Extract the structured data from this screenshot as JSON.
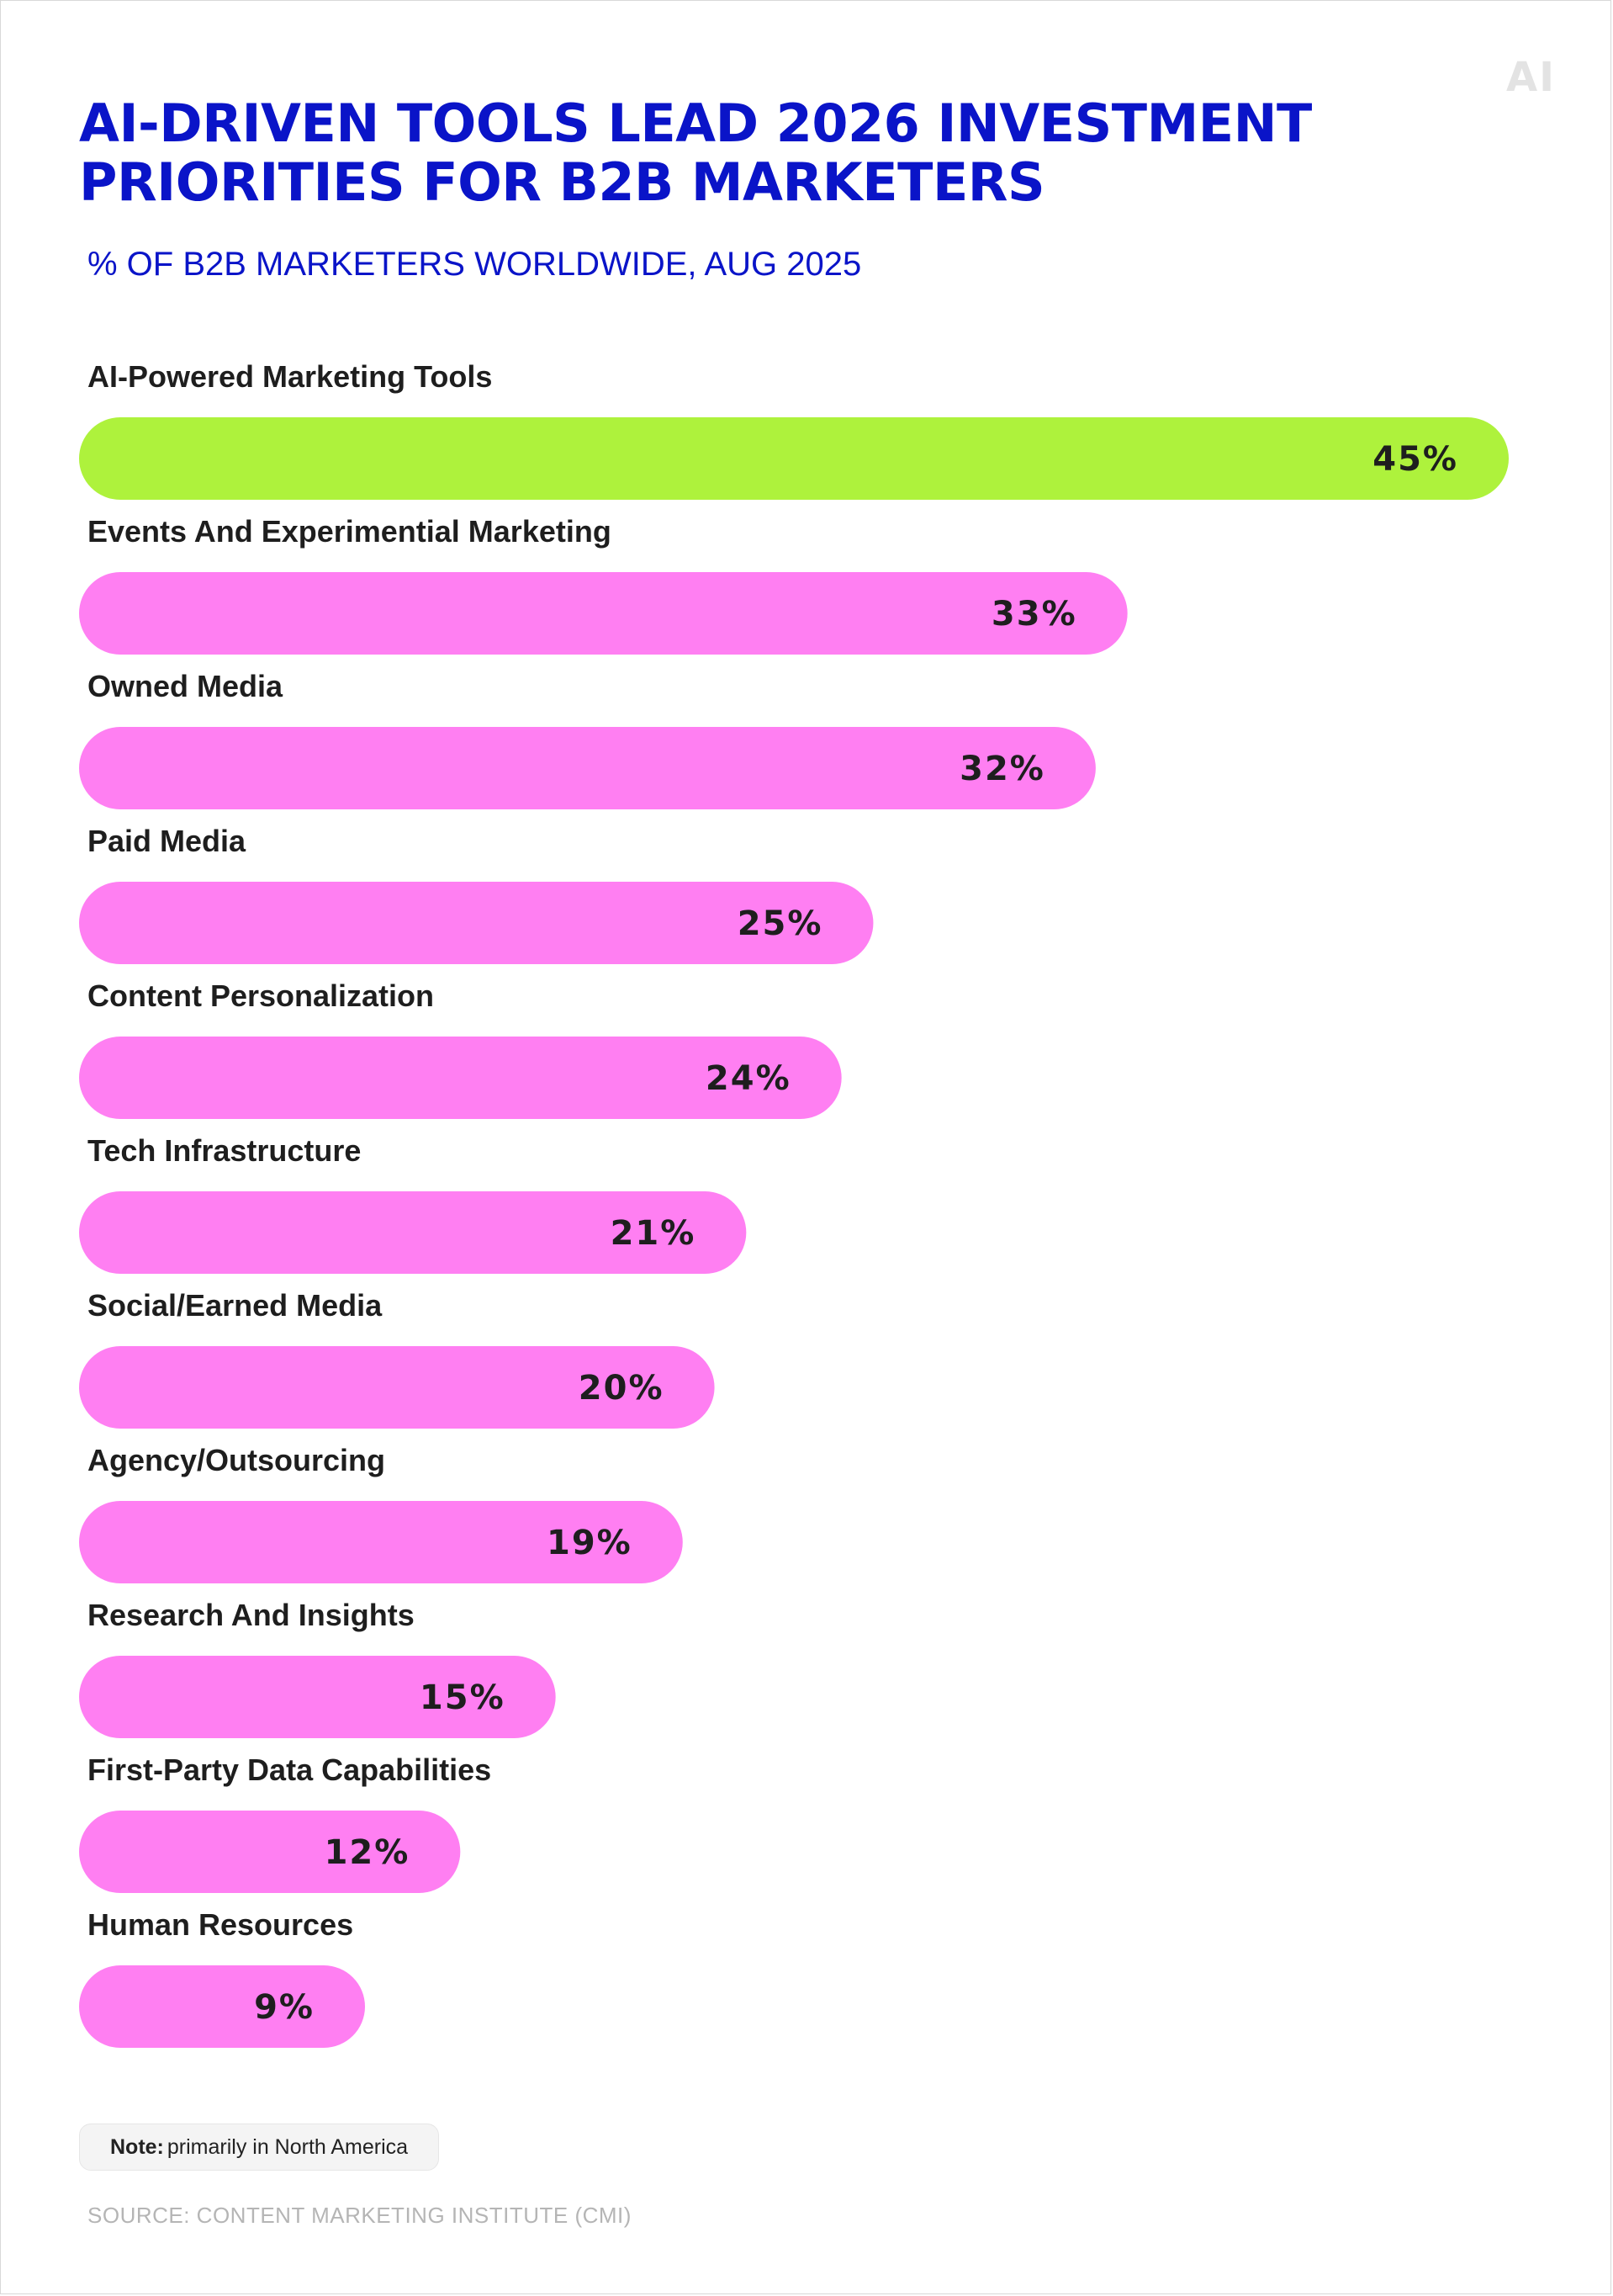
{
  "brand": {
    "logo_text": "AI"
  },
  "chart_data": {
    "type": "bar",
    "orientation": "horizontal",
    "title": "AI-DRIVEN TOOLS LEAD 2026 INVESTMENT PRIORITIES FOR B2B MARKETERS",
    "subtitle": "% OF B2B MARKETERS WORLDWIDE, AUG 2025",
    "categories": [
      "AI-Powered Marketing Tools",
      "Events And Experimential Marketing",
      "Owned Media",
      "Paid Media",
      "Content Personalization",
      "Tech Infrastructure",
      "Social/Earned Media",
      "Agency/Outsourcing",
      "Research And Insights",
      "First-Party Data Capabilities",
      "Human Resources"
    ],
    "values": [
      45,
      33,
      32,
      25,
      24,
      21,
      20,
      19,
      15,
      12,
      9
    ],
    "value_labels": [
      "45%",
      "33%",
      "32%",
      "25%",
      "24%",
      "21%",
      "20%",
      "19%",
      "15%",
      "12%",
      "9%"
    ],
    "unit": "%",
    "xlim": [
      0,
      45
    ],
    "grid": false,
    "legend": "none",
    "colors": {
      "highlight": "#aef23c",
      "default": "#ff7ff2",
      "title": "#0a14c8"
    },
    "highlight_index": 0
  },
  "note": {
    "label": "Note:",
    "text": "primarily in North America"
  },
  "source": {
    "text": "SOURCE: CONTENT MARKETING INSTITUTE (CMI)"
  }
}
